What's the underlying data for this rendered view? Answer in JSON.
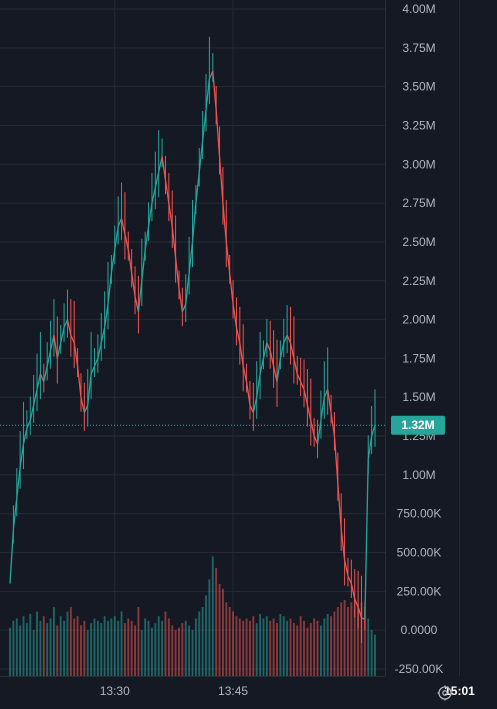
{
  "chart_data": {
    "type": "line",
    "title": "",
    "xlabel": "",
    "ylabel": "",
    "ylim": [
      -250000,
      4000000
    ],
    "y_ticks": [
      "4.00M",
      "3.75M",
      "3.50M",
      "3.25M",
      "3.00M",
      "2.75M",
      "2.50M",
      "2.25M",
      "2.00M",
      "1.75M",
      "1.50M",
      "1.25M",
      "1.00M",
      "750.00K",
      "500.00K",
      "250.00K",
      "0.0000",
      "-250.00K"
    ],
    "y_tick_values": [
      4000000,
      3750000,
      3500000,
      3250000,
      3000000,
      2750000,
      2500000,
      2250000,
      2000000,
      1750000,
      1500000,
      1250000,
      1000000,
      750000,
      500000,
      250000,
      0,
      -250000
    ],
    "x_ticks": [
      {
        "label": "13:30",
        "t": 31,
        "bold": false
      },
      {
        "label": "13:45",
        "t": 66,
        "bold": false
      },
      {
        "label": "15:01",
        "t": 133,
        "bold": true
      }
    ],
    "last_value_label": "1.32M",
    "last_value": 1320000,
    "grid": true,
    "up_color": "#26a69a",
    "down_color": "#ef5350",
    "series": [
      {
        "values": [
          300000,
          650000,
          850000,
          1050000,
          1200000,
          1300000,
          1350000,
          1450000,
          1550000,
          1650000,
          1600000,
          1700000,
          1800000,
          1900000,
          1750000,
          1850000,
          1950000,
          2000000,
          1900000,
          1850000,
          1700000,
          1500000,
          1400000,
          1450000,
          1650000,
          1700000,
          1750000,
          1850000,
          1950000,
          2100000,
          2300000,
          2450000,
          2600000,
          2650000,
          2550000,
          2450000,
          2300000,
          2150000,
          2050000,
          2250000,
          2450000,
          2600000,
          2750000,
          2850000,
          2950000,
          3050000,
          2900000,
          2750000,
          2600000,
          2400000,
          2200000,
          2050000,
          2100000,
          2300000,
          2500000,
          2750000,
          2950000,
          3150000,
          3350000,
          3550000,
          3600000,
          3350000,
          3050000,
          2750000,
          2500000,
          2300000,
          2100000,
          1950000,
          1850000,
          1700000,
          1600000,
          1450000,
          1400000,
          1500000,
          1650000,
          1750000,
          1850000,
          1800000,
          1700000,
          1600000,
          1750000,
          1850000,
          1900000,
          1850000,
          1750000,
          1650000,
          1600000,
          1550000,
          1450000,
          1350000,
          1250000,
          1200000,
          1350000,
          1500000,
          1550000,
          1400000,
          1250000,
          950000,
          650000,
          450000,
          350000,
          300000,
          200000,
          150000,
          80000,
          70000,
          1100000,
          1250000,
          1320000
        ],
        "volume_values": [
          210000,
          240000,
          250000,
          220000,
          260000,
          230000,
          270000,
          200000,
          280000,
          240000,
          260000,
          230000,
          250000,
          300000,
          220000,
          260000,
          240000,
          280000,
          300000,
          250000,
          260000,
          220000,
          240000,
          200000,
          230000,
          250000,
          240000,
          230000,
          260000,
          240000,
          250000,
          260000,
          240000,
          280000,
          230000,
          250000,
          240000,
          220000,
          300000,
          200000,
          250000,
          240000,
          210000,
          230000,
          260000,
          240000,
          280000,
          250000,
          220000,
          200000,
          210000,
          230000,
          240000,
          220000,
          200000,
          250000,
          280000,
          300000,
          350000,
          420000,
          520000,
          470000,
          400000,
          380000,
          320000,
          300000,
          280000,
          260000,
          250000,
          240000,
          250000,
          240000,
          260000,
          230000,
          270000,
          250000,
          260000,
          240000,
          250000,
          230000,
          270000,
          260000,
          240000,
          250000,
          230000,
          220000,
          260000,
          240000,
          210000,
          230000,
          250000,
          240000,
          220000,
          250000,
          270000,
          260000,
          280000,
          300000,
          320000,
          330000,
          300000,
          320000,
          340000,
          310000,
          320000,
          300000,
          250000,
          200000,
          180000
        ]
      }
    ]
  }
}
